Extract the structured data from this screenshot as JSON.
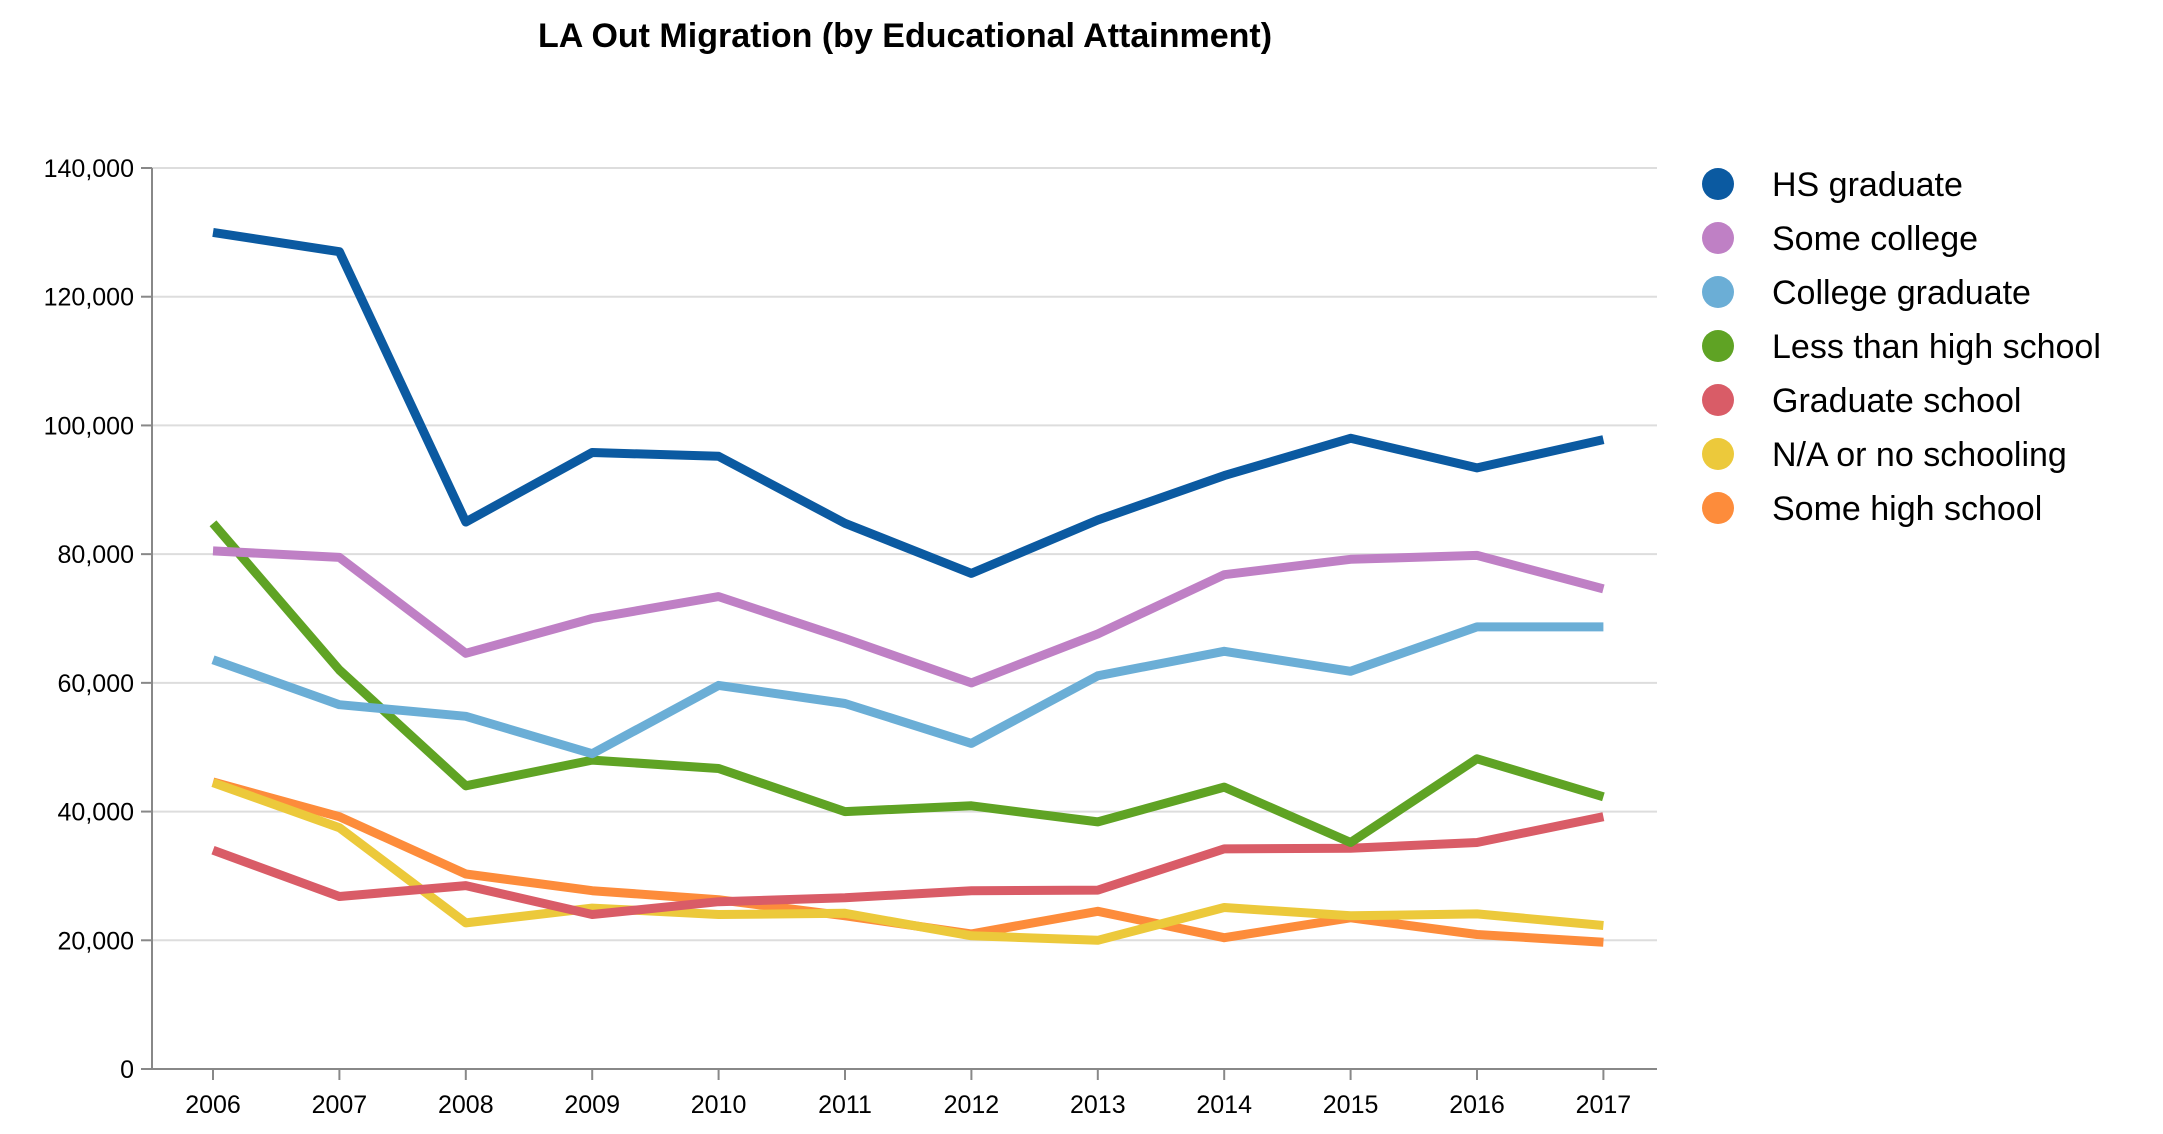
{
  "chart_data": {
    "type": "line",
    "title": "LA Out Migration (by Educational Attainment)",
    "xlabel": "",
    "ylabel": "",
    "x": [
      "2006",
      "2007",
      "2008",
      "2009",
      "2010",
      "2011",
      "2012",
      "2013",
      "2014",
      "2015",
      "2016",
      "2017"
    ],
    "ylim": [
      0,
      140000
    ],
    "yticks": [
      0,
      20000,
      40000,
      60000,
      80000,
      100000,
      120000,
      140000
    ],
    "ytick_labels": [
      "0",
      "20,000",
      "40,000",
      "60,000",
      "80,000",
      "100,000",
      "120,000",
      "140,000"
    ],
    "grid": "horizontal",
    "legend_position": "right",
    "series": [
      {
        "name": "HS graduate",
        "color": "#0b5aa1",
        "values": [
          130000,
          127000,
          85000,
          95800,
          95200,
          84800,
          77000,
          85300,
          92200,
          98000,
          93400,
          97800
        ]
      },
      {
        "name": "Some college",
        "color": "#bf80c5",
        "values": [
          80500,
          79500,
          64600,
          70000,
          73400,
          66900,
          60000,
          67600,
          76800,
          79200,
          79800,
          74600
        ]
      },
      {
        "name": "College graduate",
        "color": "#6baed6",
        "values": [
          63600,
          56600,
          54800,
          49000,
          59600,
          56800,
          50600,
          61100,
          64900,
          61800,
          68700,
          68700
        ]
      },
      {
        "name": "Less than high school",
        "color": "#5fa324",
        "values": [
          84800,
          62000,
          44000,
          48000,
          46700,
          40000,
          40900,
          38400,
          43800,
          35200,
          48200,
          42300
        ]
      },
      {
        "name": "Graduate school",
        "color": "#d95c67",
        "values": [
          34000,
          26800,
          28500,
          24000,
          26000,
          26600,
          27700,
          27800,
          34200,
          34300,
          35200,
          39200
        ]
      },
      {
        "name": "N/A or no schooling",
        "color": "#ecc93b",
        "values": [
          44500,
          37500,
          22700,
          25000,
          24000,
          24200,
          20700,
          20000,
          25100,
          23800,
          24100,
          22300
        ]
      },
      {
        "name": "Some high school",
        "color": "#fd8c3b",
        "values": [
          44600,
          39200,
          30300,
          27700,
          26300,
          23800,
          21000,
          24500,
          20400,
          23500,
          20900,
          19700
        ]
      }
    ]
  }
}
